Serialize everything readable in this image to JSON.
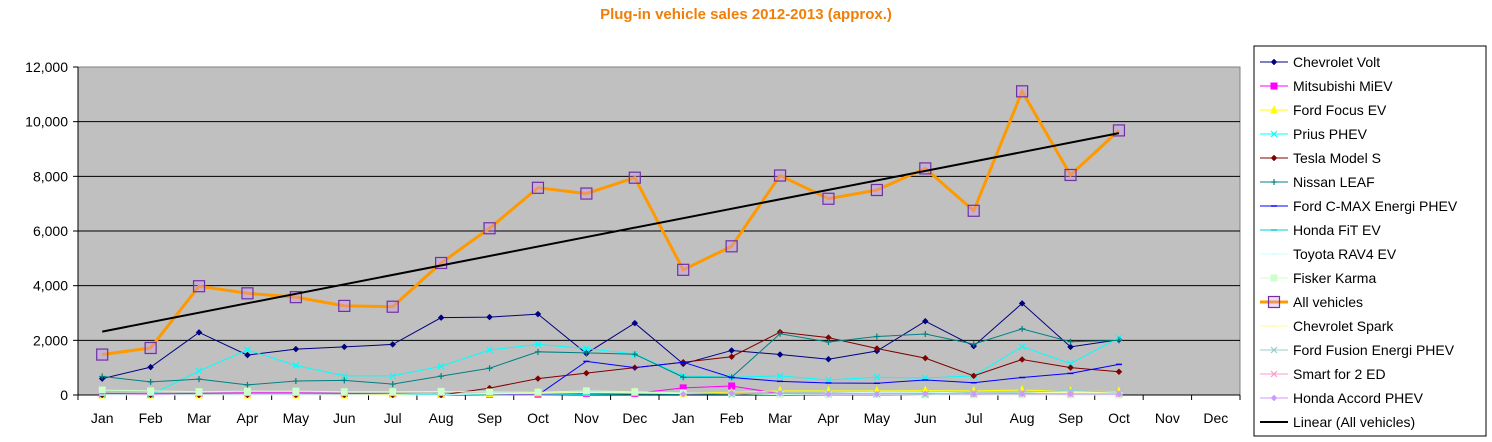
{
  "chart_data": {
    "type": "line",
    "title": "Plug-in vehicle sales 2012-2013 (approx.)",
    "xlabel": "",
    "ylabel": "",
    "ylim": [
      0,
      12000
    ],
    "yticks": [
      "0",
      "2,000",
      "4,000",
      "6,000",
      "8,000",
      "10,000",
      "12,000"
    ],
    "ytick_values": [
      0,
      2000,
      4000,
      6000,
      8000,
      10000,
      12000
    ],
    "categories": [
      "Jan",
      "Feb",
      "Mar",
      "Apr",
      "May",
      "Jun",
      "Jul",
      "Aug",
      "Sep",
      "Oct",
      "Nov",
      "Dec",
      "Jan",
      "Feb",
      "Mar",
      "Apr",
      "May",
      "Jun",
      "Jul",
      "Aug",
      "Sep",
      "Oct",
      "Nov",
      "Dec"
    ],
    "grid": "horizontal",
    "legend_position": "right",
    "plot_background": "#c0c0c0",
    "series": [
      {
        "name": "Chevrolet Volt",
        "color": "#000080",
        "marker": "diamond",
        "values": [
          600,
          1020,
          2290,
          1460,
          1680,
          1760,
          1850,
          2830,
          2850,
          2960,
          1520,
          2630,
          1140,
          1630,
          1480,
          1310,
          1610,
          2700,
          1790,
          3350,
          1760,
          2020,
          null,
          null
        ]
      },
      {
        "name": "Mitsubishi MiEV",
        "color": "#ff00ff",
        "marker": "square",
        "values": [
          60,
          40,
          60,
          80,
          80,
          60,
          40,
          30,
          20,
          30,
          60,
          60,
          260,
          330,
          50,
          20,
          20,
          30,
          60,
          40,
          20,
          20,
          null,
          null
        ]
      },
      {
        "name": "Ford Focus EV",
        "color": "#ffff00",
        "marker": "triangle",
        "values": [
          0,
          0,
          0,
          0,
          0,
          0,
          20,
          40,
          40,
          80,
          100,
          100,
          50,
          100,
          150,
          150,
          150,
          160,
          150,
          180,
          140,
          130,
          null,
          null
        ]
      },
      {
        "name": "Prius PHEV",
        "color": "#00ffff",
        "marker": "x",
        "values": [
          0,
          0,
          880,
          1650,
          1080,
          700,
          700,
          1050,
          1650,
          1850,
          1700,
          1500,
          700,
          650,
          700,
          550,
          650,
          620,
          700,
          1770,
          1150,
          2090,
          null,
          null
        ]
      },
      {
        "name": "Tesla Model S",
        "color": "#800000",
        "marker": "diamond",
        "values": [
          0,
          0,
          0,
          0,
          0,
          0,
          0,
          0,
          250,
          600,
          800,
          1000,
          1200,
          1400,
          2300,
          2100,
          1700,
          1350,
          700,
          1300,
          1000,
          850,
          null,
          null
        ]
      },
      {
        "name": "Nissan LEAF",
        "color": "#008080",
        "marker": "plus",
        "values": [
          680,
          480,
          580,
          370,
          510,
          535,
          400,
          690,
          980,
          1580,
          1540,
          1490,
          650,
          650,
          2240,
          1940,
          2140,
          2230,
          1860,
          2420,
          1950,
          2000,
          null,
          null
        ]
      },
      {
        "name": "Ford C-MAX Energi PHEV",
        "color": "#0000ff",
        "marker": "dash",
        "values": [
          0,
          0,
          0,
          0,
          0,
          0,
          0,
          0,
          0,
          0,
          1230,
          1000,
          1200,
          640,
          500,
          440,
          430,
          550,
          450,
          640,
          790,
          1120,
          null,
          null
        ]
      },
      {
        "name": "Honda FiT EV",
        "color": "#00cccc",
        "marker": "dash",
        "values": [
          0,
          0,
          0,
          0,
          0,
          0,
          0,
          30,
          0,
          0,
          20,
          40,
          30,
          40,
          20,
          20,
          20,
          40,
          50,
          40,
          40,
          70,
          null,
          null
        ]
      },
      {
        "name": "Toyota RAV4 EV",
        "color": "#ccffff",
        "marker": "dash",
        "values": [
          0,
          0,
          0,
          0,
          0,
          0,
          0,
          0,
          60,
          60,
          90,
          80,
          50,
          60,
          50,
          70,
          100,
          100,
          80,
          90,
          80,
          70,
          null,
          null
        ]
      },
      {
        "name": "Fisker Karma",
        "color": "#ccffcc",
        "marker": "square",
        "values": [
          180,
          150,
          120,
          140,
          140,
          120,
          120,
          130,
          110,
          100,
          150,
          120,
          80,
          40,
          20,
          10,
          10,
          0,
          0,
          0,
          0,
          0,
          null,
          null
        ]
      },
      {
        "name": "All vehicles",
        "color": "#ff9900",
        "marker": "open-square",
        "values": [
          1480,
          1720,
          3980,
          3720,
          3580,
          3260,
          3230,
          4830,
          6100,
          7580,
          7370,
          7950,
          4580,
          5440,
          8030,
          7180,
          7500,
          8290,
          6740,
          11110,
          8050,
          9680,
          null,
          null
        ]
      },
      {
        "name": "Chevrolet Spark",
        "color": "#ffff99",
        "marker": "dash",
        "values": [
          null,
          null,
          null,
          null,
          null,
          null,
          null,
          null,
          null,
          null,
          null,
          null,
          null,
          null,
          null,
          null,
          null,
          27,
          100,
          100,
          100,
          100,
          null,
          null
        ]
      },
      {
        "name": "Ford Fusion Energi PHEV",
        "color": "#99cccc",
        "marker": "x",
        "values": [
          null,
          null,
          null,
          null,
          null,
          null,
          null,
          null,
          null,
          null,
          null,
          null,
          null,
          20,
          80,
          70,
          40,
          20,
          100,
          100,
          170,
          100,
          null,
          null
        ]
      },
      {
        "name": "Smart for 2 ED",
        "color": "#ff99cc",
        "marker": "x",
        "values": [
          null,
          null,
          null,
          null,
          null,
          null,
          null,
          null,
          null,
          null,
          null,
          null,
          null,
          null,
          null,
          null,
          null,
          null,
          30,
          40,
          40,
          40,
          null,
          null
        ]
      },
      {
        "name": "Honda Accord PHEV",
        "color": "#cc99ff",
        "marker": "diamond",
        "values": [
          null,
          null,
          null,
          null,
          null,
          null,
          null,
          null,
          null,
          null,
          null,
          null,
          30,
          70,
          60,
          30,
          30,
          50,
          30,
          40,
          30,
          30,
          null,
          null
        ]
      }
    ],
    "trendline": {
      "name": "Linear (All vehicles)",
      "color": "#000000",
      "of_series": "All vehicles",
      "start": 2320,
      "end": 9580
    }
  }
}
